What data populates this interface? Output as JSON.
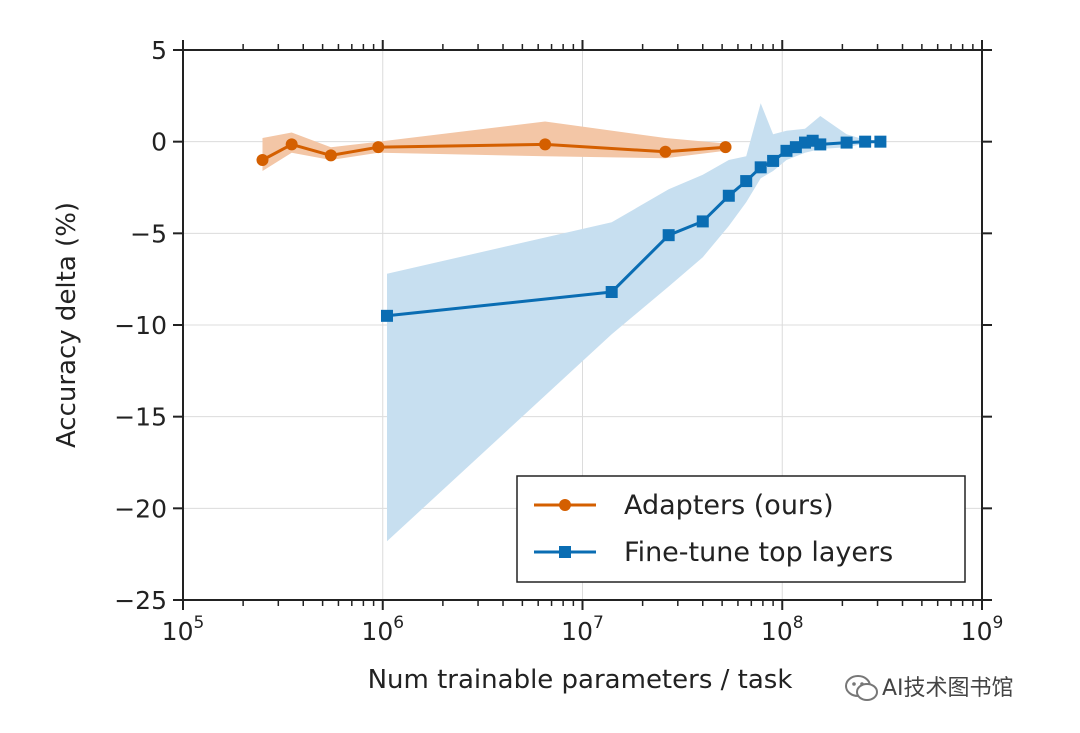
{
  "chart_data": {
    "type": "line",
    "xlabel": "Num trainable parameters / task",
    "ylabel": "Accuracy delta (%)",
    "x_scale": "log",
    "xlim": [
      100000,
      1000000000
    ],
    "ylim": [
      -25,
      5
    ],
    "x_ticks": [
      {
        "value": 100000,
        "base": "10",
        "exp": "5"
      },
      {
        "value": 1000000,
        "base": "10",
        "exp": "6"
      },
      {
        "value": 10000000,
        "base": "10",
        "exp": "7"
      },
      {
        "value": 100000000,
        "base": "10",
        "exp": "8"
      },
      {
        "value": 1000000000,
        "base": "10",
        "exp": "9"
      }
    ],
    "y_ticks": [
      {
        "value": 5,
        "label": "5"
      },
      {
        "value": 0,
        "label": "0"
      },
      {
        "value": -5,
        "label": "−5"
      },
      {
        "value": -10,
        "label": "−10"
      },
      {
        "value": -15,
        "label": "−15"
      },
      {
        "value": -20,
        "label": "−20"
      },
      {
        "value": -25,
        "label": "−25"
      }
    ],
    "grid": true,
    "legend_position": "bottom-right",
    "series": [
      {
        "name": "Adapters (ours)",
        "color": "#d45f00",
        "band_color": "#f3c6a6",
        "marker": "circle",
        "points": [
          {
            "x": 250000,
            "y": -1.0
          },
          {
            "x": 350000,
            "y": -0.15
          },
          {
            "x": 550000,
            "y": -0.75
          },
          {
            "x": 950000,
            "y": -0.3
          },
          {
            "x": 6500000,
            "y": -0.15
          },
          {
            "x": 26000000,
            "y": -0.55
          },
          {
            "x": 52000000,
            "y": -0.3
          }
        ],
        "band_upper": [
          {
            "x": 250000,
            "y": 0.2
          },
          {
            "x": 350000,
            "y": 0.5
          },
          {
            "x": 550000,
            "y": -0.3
          },
          {
            "x": 950000,
            "y": 0.0
          },
          {
            "x": 6500000,
            "y": 1.1
          },
          {
            "x": 26000000,
            "y": 0.2
          },
          {
            "x": 52000000,
            "y": -0.1
          }
        ],
        "band_lower": [
          {
            "x": 250000,
            "y": -1.6
          },
          {
            "x": 350000,
            "y": -0.6
          },
          {
            "x": 550000,
            "y": -1.0
          },
          {
            "x": 950000,
            "y": -0.6
          },
          {
            "x": 6500000,
            "y": -0.8
          },
          {
            "x": 26000000,
            "y": -0.9
          },
          {
            "x": 52000000,
            "y": -0.5
          }
        ]
      },
      {
        "name": "Fine-tune top layers",
        "color": "#0a6db3",
        "band_color": "#c7dff0",
        "marker": "square",
        "points": [
          {
            "x": 1050000,
            "y": -9.5
          },
          {
            "x": 14000000,
            "y": -8.2
          },
          {
            "x": 27000000,
            "y": -5.1
          },
          {
            "x": 40000000,
            "y": -4.35
          },
          {
            "x": 54000000,
            "y": -2.95
          },
          {
            "x": 66000000,
            "y": -2.15
          },
          {
            "x": 78000000,
            "y": -1.4
          },
          {
            "x": 90000000,
            "y": -1.05
          },
          {
            "x": 105000000,
            "y": -0.5
          },
          {
            "x": 117000000,
            "y": -0.3
          },
          {
            "x": 130000000,
            "y": -0.05
          },
          {
            "x": 142000000,
            "y": 0.05
          },
          {
            "x": 155000000,
            "y": -0.15
          },
          {
            "x": 210000000,
            "y": -0.05
          },
          {
            "x": 260000000,
            "y": 0.0
          },
          {
            "x": 310000000,
            "y": 0.0
          }
        ],
        "band_upper": [
          {
            "x": 1050000,
            "y": -7.2
          },
          {
            "x": 14000000,
            "y": -4.4
          },
          {
            "x": 27000000,
            "y": -2.6
          },
          {
            "x": 40000000,
            "y": -1.8
          },
          {
            "x": 54000000,
            "y": -1.0
          },
          {
            "x": 66000000,
            "y": -0.8
          },
          {
            "x": 78000000,
            "y": 2.1
          },
          {
            "x": 90000000,
            "y": 0.4
          },
          {
            "x": 105000000,
            "y": 0.6
          },
          {
            "x": 130000000,
            "y": 0.7
          },
          {
            "x": 155000000,
            "y": 1.4
          },
          {
            "x": 210000000,
            "y": 0.4
          },
          {
            "x": 260000000,
            "y": 0.1
          },
          {
            "x": 310000000,
            "y": 0.05
          }
        ],
        "band_lower": [
          {
            "x": 1050000,
            "y": -21.8
          },
          {
            "x": 14000000,
            "y": -10.5
          },
          {
            "x": 27000000,
            "y": -7.9
          },
          {
            "x": 40000000,
            "y": -6.3
          },
          {
            "x": 54000000,
            "y": -4.6
          },
          {
            "x": 66000000,
            "y": -3.3
          },
          {
            "x": 78000000,
            "y": -2.0
          },
          {
            "x": 90000000,
            "y": -1.6
          },
          {
            "x": 105000000,
            "y": -1.0
          },
          {
            "x": 130000000,
            "y": -0.6
          },
          {
            "x": 155000000,
            "y": -0.4
          },
          {
            "x": 210000000,
            "y": -0.3
          },
          {
            "x": 260000000,
            "y": -0.1
          },
          {
            "x": 310000000,
            "y": -0.05
          }
        ]
      }
    ]
  },
  "watermark": {
    "text": "AI技术图书馆",
    "logo_icon": "wechat-logo-icon"
  }
}
